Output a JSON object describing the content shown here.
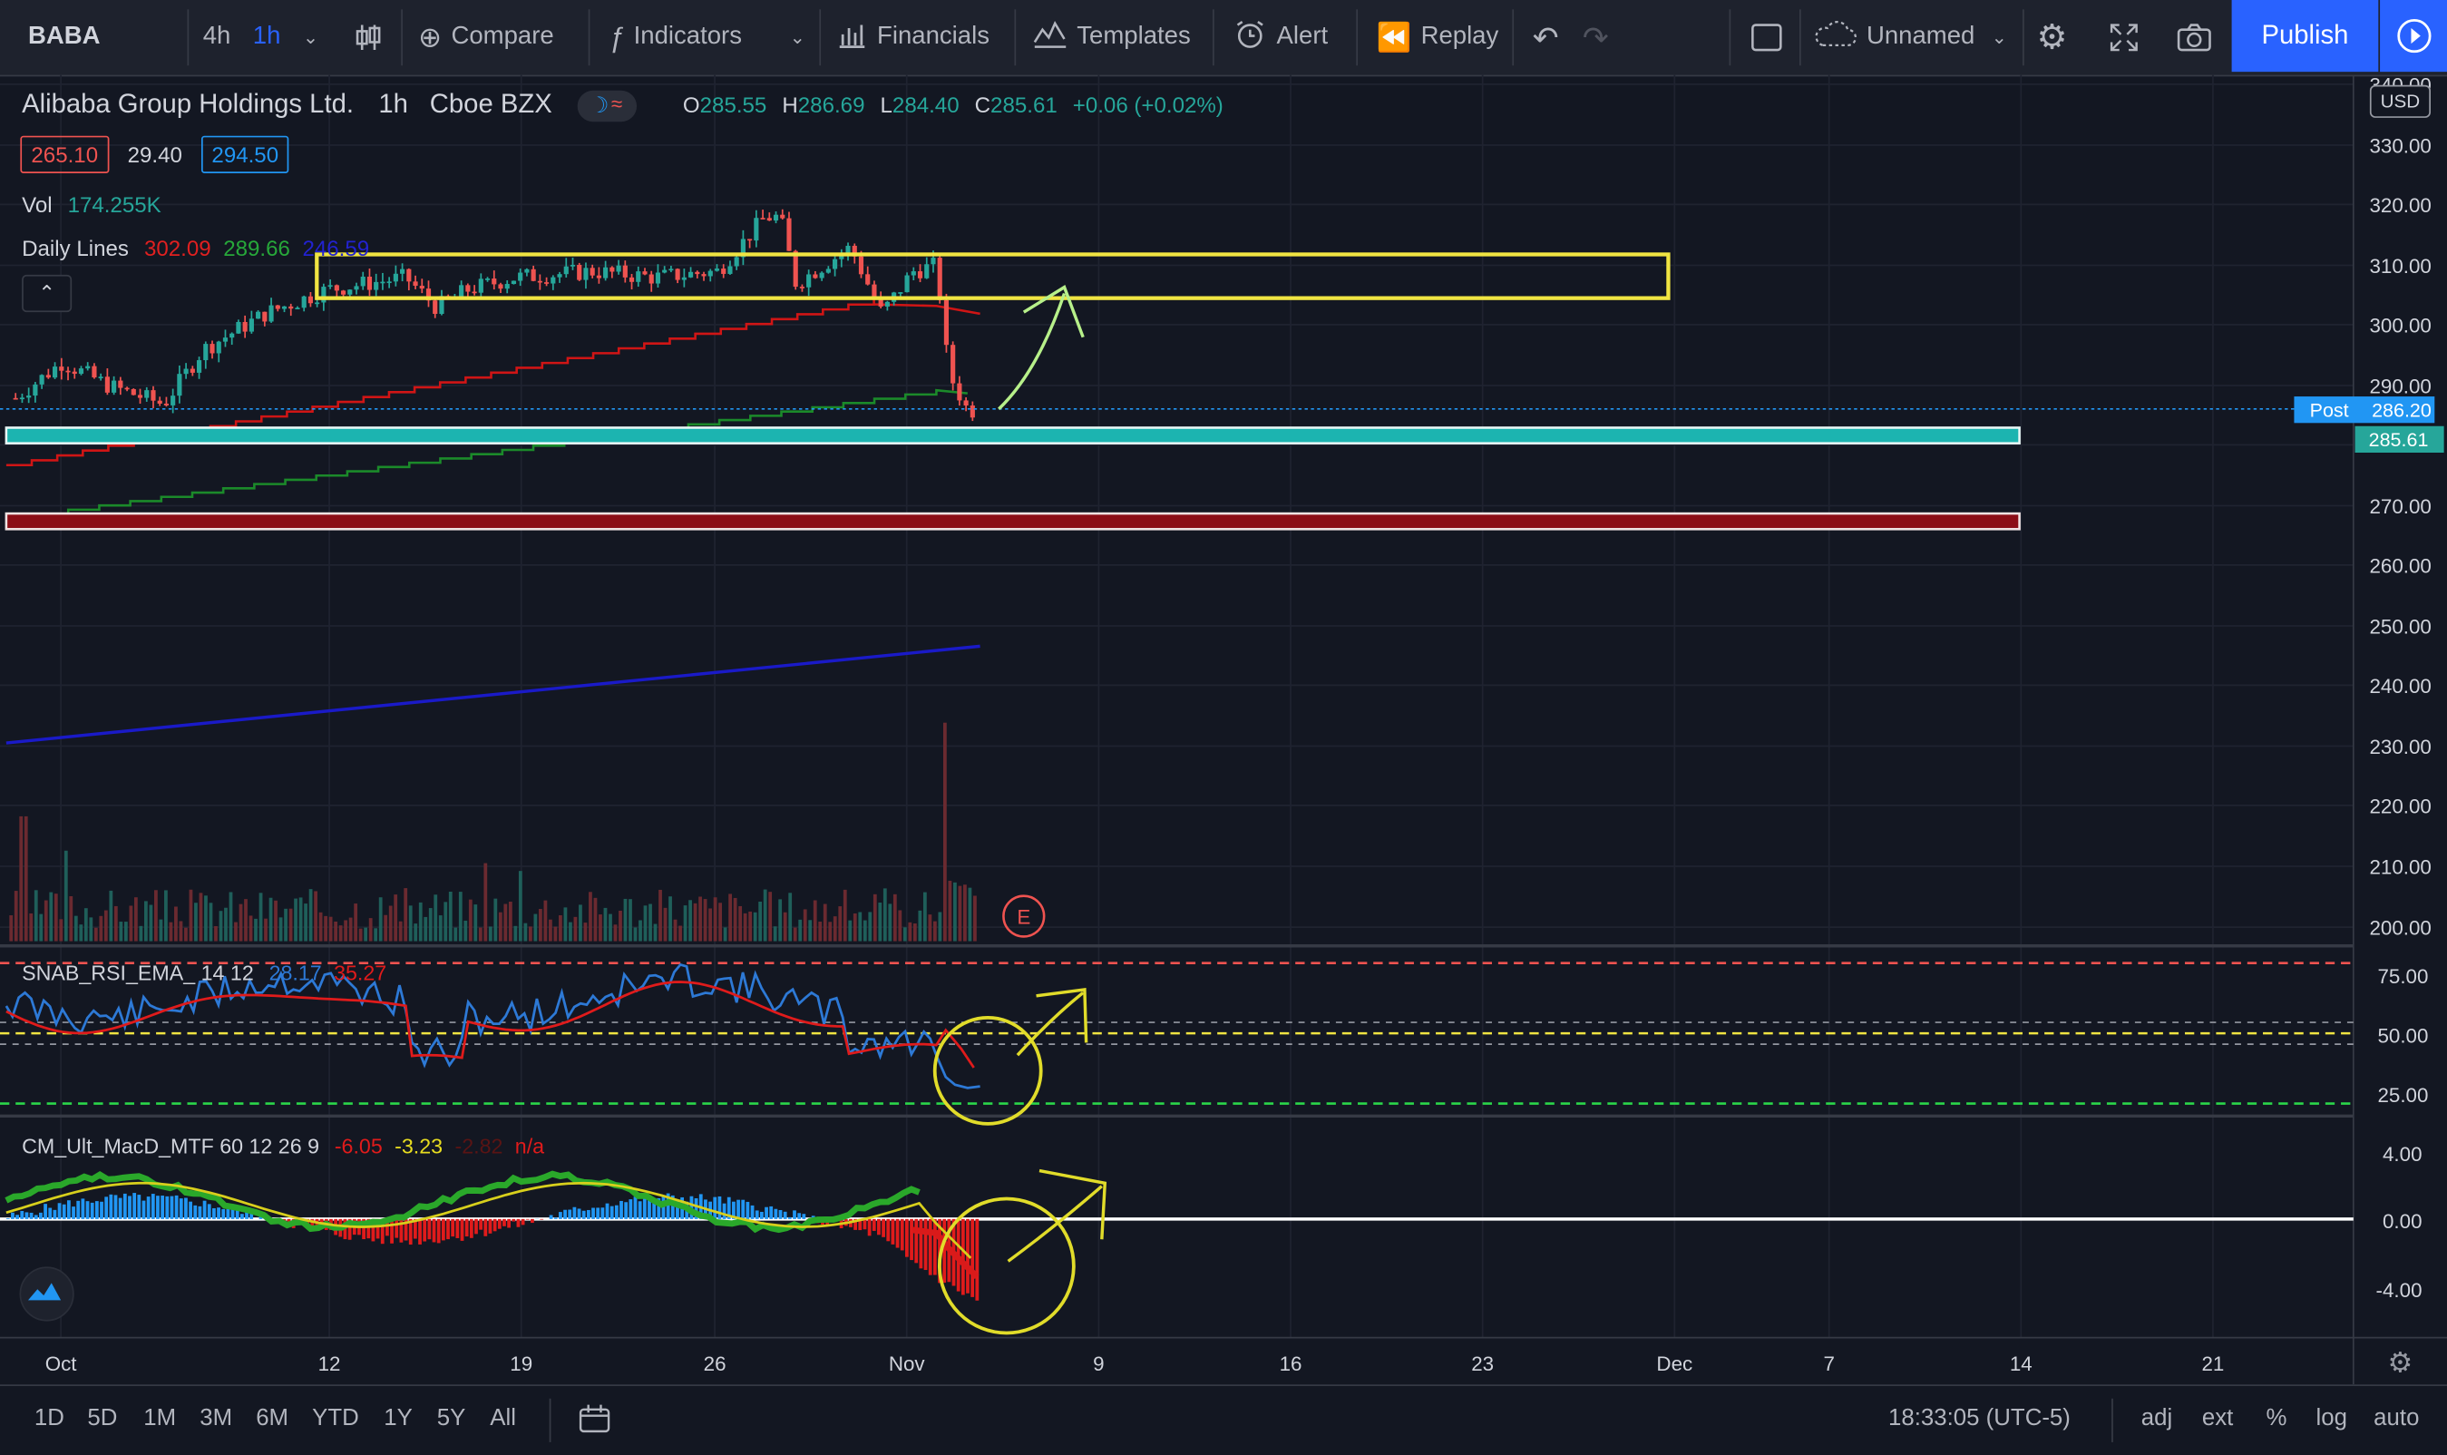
{
  "toolbar": {
    "symbol": "BABA",
    "interval_4h": "4h",
    "interval_1h": "1h",
    "compare": "Compare",
    "indicators": "Indicators",
    "financials": "Financials",
    "templates": "Templates",
    "alert": "Alert",
    "replay": "Replay",
    "layout_name": "Unnamed",
    "publish": "Publish"
  },
  "legend": {
    "title": "Alibaba Group Holdings Ltd.",
    "interval": "1h",
    "exchange": "Cboe BZX",
    "o_label": "O",
    "o": "285.55",
    "h_label": "H",
    "h": "286.69",
    "l_label": "L",
    "l": "284.40",
    "c_label": "C",
    "c": "285.61",
    "change": "+0.06 (+0.02%)",
    "bid": "265.10",
    "spread": "29.40",
    "ask": "294.50",
    "vol_label": "Vol",
    "vol": "174.255K",
    "daily_lines_label": "Daily Lines",
    "dl1": "302.09",
    "dl2": "289.66",
    "dl3": "246.59"
  },
  "rsi_legend": {
    "name": "SNAB_RSI_EMA_ 14 12",
    "v1": "28.17",
    "v2": "35.27"
  },
  "macd_legend": {
    "name": "CM_Ult_MacD_MTF 60 12 26 9",
    "v1": "-6.05",
    "v2": "-3.23",
    "v3": "-2.82",
    "v4": "n/a"
  },
  "price_axis": {
    "currency": "USD",
    "labels": [
      "340.00",
      "330.00",
      "320.00",
      "310.00",
      "300.00",
      "290.00",
      "270.00",
      "260.00",
      "250.00",
      "240.00",
      "230.00",
      "220.00",
      "210.00",
      "200.00"
    ],
    "post_label": "Post",
    "post_price": "286.20",
    "last_price": "285.61"
  },
  "rsi_axis": [
    "75.00",
    "50.00",
    "25.00"
  ],
  "macd_axis": [
    "4.00",
    "0.00",
    "-4.00"
  ],
  "time_axis": [
    "Oct",
    "12",
    "19",
    "26",
    "Nov",
    "9",
    "16",
    "23",
    "Dec",
    "7",
    "14",
    "21"
  ],
  "earnings_marker": "E",
  "bottom": {
    "ranges": [
      "1D",
      "5D",
      "1M",
      "3M",
      "6M",
      "YTD",
      "1Y",
      "5Y",
      "All"
    ],
    "clock": "18:33:05 (UTC-5)",
    "adj": "adj",
    "ext": "ext",
    "pct": "%",
    "log": "log",
    "auto": "auto"
  },
  "colors": {
    "accent": "#2962ff",
    "up": "#26a69a",
    "down": "#ef5350",
    "yellow": "#f0e442",
    "teal_zone": "#1cb4b0",
    "red_zone": "#8b0d16"
  }
}
